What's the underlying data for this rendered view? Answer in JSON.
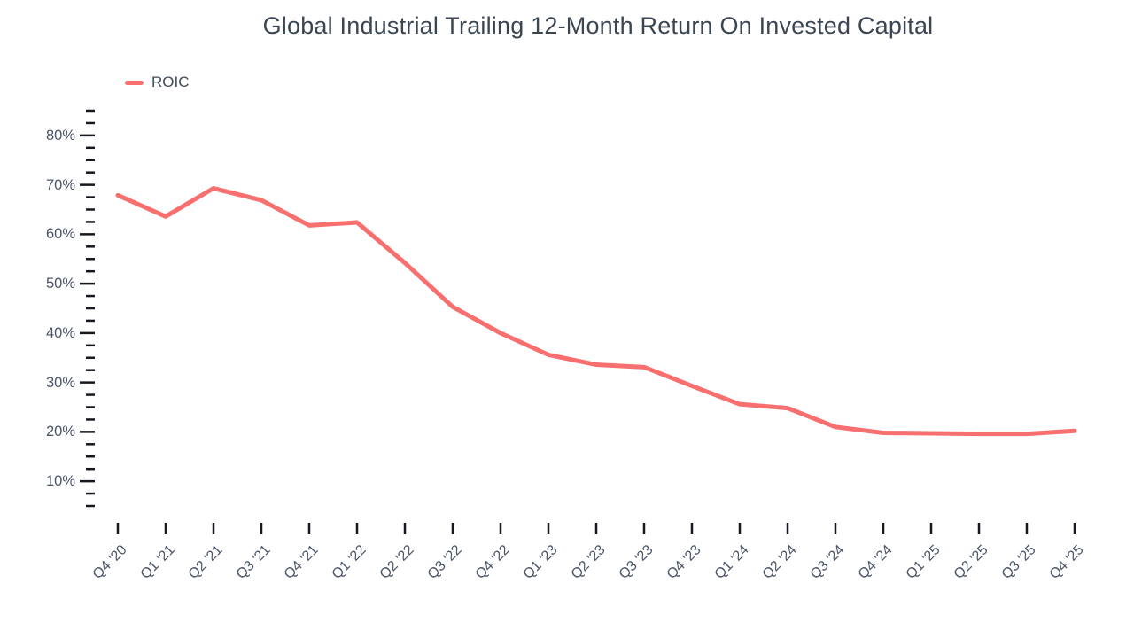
{
  "title": "Global Industrial Trailing 12-Month Return On Invested Capital",
  "legend": {
    "items": [
      {
        "label": "ROIC",
        "color": "#f7706f"
      }
    ]
  },
  "colors": {
    "series_line": "#f7706f",
    "title_text": "#3c4653",
    "axis_text": "#4a5568",
    "tick_mark": "#15181e",
    "background": "#ffffff"
  },
  "chart_data": {
    "type": "line",
    "title": "Global Industrial Trailing 12-Month Return On Invested Capital",
    "xlabel": "",
    "ylabel": "",
    "categories": [
      "Q4 '20",
      "Q1 '21",
      "Q2 '21",
      "Q3 '21",
      "Q4 '21",
      "Q1 '22",
      "Q2 '22",
      "Q3 '22",
      "Q4 '22",
      "Q1 '23",
      "Q2 '23",
      "Q3 '23",
      "Q4 '23",
      "Q1 '24",
      "Q2 '24",
      "Q3 '24",
      "Q4 '24",
      "Q1 '25",
      "Q2 '25",
      "Q3 '25",
      "Q4 '25"
    ],
    "series": [
      {
        "name": "ROIC",
        "color": "#f7706f",
        "values": [
          67.9,
          63.6,
          69.3,
          66.9,
          61.8,
          62.4,
          54.2,
          45.3,
          40.0,
          35.6,
          33.6,
          33.1,
          29.3,
          25.6,
          24.8,
          21.0,
          19.8,
          19.7,
          19.6,
          19.6,
          20.2
        ]
      }
    ],
    "y_axis": {
      "unit": "%",
      "min": 5,
      "max": 85,
      "major_step": 10,
      "minor_step": 2.5,
      "major_tick_labels": [
        "10%",
        "20%",
        "30%",
        "40%",
        "50%",
        "60%",
        "70%",
        "80%"
      ]
    },
    "grid": false,
    "legend_position": "top-left"
  }
}
